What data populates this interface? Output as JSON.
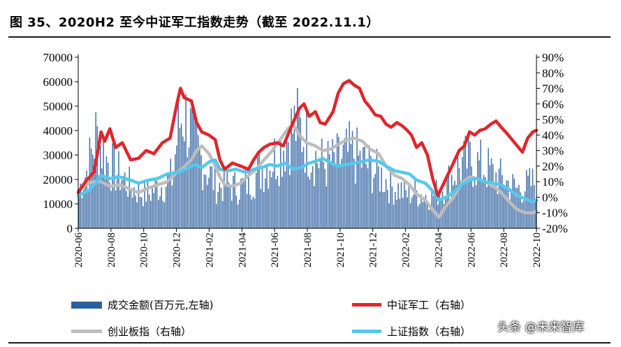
{
  "title": "图 35、2020H2 至今中证军工指数走势（截至 2022.11.1）",
  "watermark": "头条 @未来智库",
  "colors": {
    "volume": "#2c5f9e",
    "military": "#e0262b",
    "chinext": "#bdbdbd",
    "shanghai": "#55c8ee"
  },
  "chart_data": {
    "type": "bar+line",
    "left_axis": {
      "min": 0,
      "max": 70000,
      "ticks": [
        "0",
        "10000",
        "20000",
        "30000",
        "40000",
        "50000",
        "60000",
        "70000"
      ]
    },
    "right_axis": {
      "min": -20,
      "max": 90,
      "ticks": [
        "-20%",
        "-10%",
        "0%",
        "10%",
        "20%",
        "30%",
        "40%",
        "50%",
        "60%",
        "70%",
        "80%",
        "90%"
      ]
    },
    "x_ticks": [
      "2020-06",
      "2020-08",
      "2020-10",
      "2020-12",
      "2021-02",
      "2021-04",
      "2021-06",
      "2021-08",
      "2021-10",
      "2021-12",
      "2022-02",
      "2022-04",
      "2022-06",
      "2022-08",
      "2022-10"
    ],
    "x_range": [
      "2020-06-01",
      "2022-11-01"
    ],
    "series": [
      {
        "name": "成交金额(百万元,左轴)",
        "kind": "bar",
        "axis": "left",
        "points": [
          [
            "2020-06-01",
            15000
          ],
          [
            "2020-06-20",
            25000
          ],
          [
            "2020-07-05",
            38000
          ],
          [
            "2020-07-15",
            33000
          ],
          [
            "2020-07-25",
            28000
          ],
          [
            "2020-08-10",
            24000
          ],
          [
            "2020-08-25",
            21000
          ],
          [
            "2020-09-10",
            17000
          ],
          [
            "2020-09-25",
            15000
          ],
          [
            "2020-10-15",
            14000
          ],
          [
            "2020-10-30",
            17000
          ],
          [
            "2020-11-15",
            18000
          ],
          [
            "2020-11-30",
            21000
          ],
          [
            "2020-12-10",
            40000
          ],
          [
            "2020-12-20",
            48000
          ],
          [
            "2020-12-31",
            42000
          ],
          [
            "2021-01-10",
            35000
          ],
          [
            "2021-01-25",
            28000
          ],
          [
            "2021-02-10",
            22000
          ],
          [
            "2021-02-25",
            17000
          ],
          [
            "2021-03-10",
            18000
          ],
          [
            "2021-03-25",
            17000
          ],
          [
            "2021-04-10",
            17000
          ],
          [
            "2021-04-25",
            19000
          ],
          [
            "2021-05-10",
            22000
          ],
          [
            "2021-05-25",
            25000
          ],
          [
            "2021-06-10",
            28000
          ],
          [
            "2021-06-25",
            32000
          ],
          [
            "2021-07-10",
            38000
          ],
          [
            "2021-07-25",
            42000
          ],
          [
            "2021-08-05",
            40000
          ],
          [
            "2021-08-20",
            33000
          ],
          [
            "2021-09-05",
            28000
          ],
          [
            "2021-09-20",
            26000
          ],
          [
            "2021-10-10",
            27000
          ],
          [
            "2021-10-25",
            29000
          ],
          [
            "2021-11-10",
            31000
          ],
          [
            "2021-11-25",
            28000
          ],
          [
            "2021-12-10",
            26000
          ],
          [
            "2021-12-25",
            23000
          ],
          [
            "2022-01-10",
            21000
          ],
          [
            "2022-01-25",
            17000
          ],
          [
            "2022-02-10",
            16000
          ],
          [
            "2022-02-25",
            14000
          ],
          [
            "2022-03-10",
            15000
          ],
          [
            "2022-03-25",
            14000
          ],
          [
            "2022-04-10",
            13000
          ],
          [
            "2022-04-25",
            15000
          ],
          [
            "2022-05-10",
            18000
          ],
          [
            "2022-05-25",
            22000
          ],
          [
            "2022-06-10",
            26000
          ],
          [
            "2022-06-25",
            28000
          ],
          [
            "2022-07-10",
            26000
          ],
          [
            "2022-07-25",
            25000
          ],
          [
            "2022-08-10",
            22000
          ],
          [
            "2022-08-25",
            20000
          ],
          [
            "2022-09-10",
            18000
          ],
          [
            "2022-09-25",
            16000
          ],
          [
            "2022-10-10",
            17000
          ],
          [
            "2022-10-31",
            19000
          ]
        ]
      },
      {
        "name": "中证军工（右轴）",
        "kind": "line",
        "axis": "right",
        "points": [
          [
            "2020-06-01",
            3
          ],
          [
            "2020-06-15",
            10
          ],
          [
            "2020-07-01",
            16
          ],
          [
            "2020-07-08",
            28
          ],
          [
            "2020-07-15",
            42
          ],
          [
            "2020-07-22",
            36
          ],
          [
            "2020-08-01",
            44
          ],
          [
            "2020-08-12",
            32
          ],
          [
            "2020-08-25",
            35
          ],
          [
            "2020-09-10",
            24
          ],
          [
            "2020-09-25",
            25
          ],
          [
            "2020-10-10",
            30
          ],
          [
            "2020-10-25",
            28
          ],
          [
            "2020-11-10",
            35
          ],
          [
            "2020-11-25",
            38
          ],
          [
            "2020-12-08",
            60
          ],
          [
            "2020-12-15",
            70
          ],
          [
            "2020-12-22",
            64
          ],
          [
            "2021-01-05",
            62
          ],
          [
            "2021-01-15",
            48
          ],
          [
            "2021-01-25",
            42
          ],
          [
            "2021-02-08",
            40
          ],
          [
            "2021-02-20",
            37
          ],
          [
            "2021-03-01",
            24
          ],
          [
            "2021-03-10",
            18
          ],
          [
            "2021-03-25",
            22
          ],
          [
            "2021-04-10",
            20
          ],
          [
            "2021-04-25",
            18
          ],
          [
            "2021-05-05",
            24
          ],
          [
            "2021-05-15",
            29
          ],
          [
            "2021-05-25",
            32
          ],
          [
            "2021-06-05",
            34
          ],
          [
            "2021-06-20",
            35
          ],
          [
            "2021-07-01",
            33
          ],
          [
            "2021-07-10",
            40
          ],
          [
            "2021-07-20",
            48
          ],
          [
            "2021-08-01",
            57
          ],
          [
            "2021-08-10",
            60
          ],
          [
            "2021-08-20",
            52
          ],
          [
            "2021-09-01",
            55
          ],
          [
            "2021-09-10",
            48
          ],
          [
            "2021-09-20",
            47
          ],
          [
            "2021-10-05",
            55
          ],
          [
            "2021-10-15",
            67
          ],
          [
            "2021-10-25",
            73
          ],
          [
            "2021-11-05",
            75
          ],
          [
            "2021-11-15",
            72
          ],
          [
            "2021-11-25",
            70
          ],
          [
            "2021-12-05",
            62
          ],
          [
            "2021-12-15",
            58
          ],
          [
            "2021-12-25",
            53
          ],
          [
            "2022-01-05",
            52
          ],
          [
            "2022-01-15",
            47
          ],
          [
            "2022-01-25",
            45
          ],
          [
            "2022-02-05",
            48
          ],
          [
            "2022-02-15",
            46
          ],
          [
            "2022-02-25",
            43
          ],
          [
            "2022-03-05",
            40
          ],
          [
            "2022-03-15",
            32
          ],
          [
            "2022-03-25",
            35
          ],
          [
            "2022-04-05",
            27
          ],
          [
            "2022-04-15",
            12
          ],
          [
            "2022-04-25",
            1
          ],
          [
            "2022-05-05",
            8
          ],
          [
            "2022-05-15",
            15
          ],
          [
            "2022-05-25",
            22
          ],
          [
            "2022-06-05",
            30
          ],
          [
            "2022-06-15",
            33
          ],
          [
            "2022-06-25",
            42
          ],
          [
            "2022-07-05",
            40
          ],
          [
            "2022-07-15",
            43
          ],
          [
            "2022-07-25",
            44
          ],
          [
            "2022-08-05",
            47
          ],
          [
            "2022-08-15",
            49
          ],
          [
            "2022-08-25",
            45
          ],
          [
            "2022-09-05",
            41
          ],
          [
            "2022-09-20",
            35
          ],
          [
            "2022-10-05",
            29
          ],
          [
            "2022-10-15",
            38
          ],
          [
            "2022-10-25",
            42
          ],
          [
            "2022-11-01",
            43
          ]
        ]
      },
      {
        "name": "创业板指（右轴）",
        "kind": "line",
        "axis": "right",
        "points": [
          [
            "2020-06-01",
            4
          ],
          [
            "2020-06-15",
            8
          ],
          [
            "2020-07-01",
            10
          ],
          [
            "2020-07-15",
            10
          ],
          [
            "2020-08-01",
            7
          ],
          [
            "2020-08-20",
            8
          ],
          [
            "2020-09-10",
            5
          ],
          [
            "2020-09-25",
            3
          ],
          [
            "2020-10-15",
            6
          ],
          [
            "2020-11-01",
            8
          ],
          [
            "2020-11-20",
            10
          ],
          [
            "2020-12-05",
            15
          ],
          [
            "2020-12-20",
            19
          ],
          [
            "2021-01-05",
            24
          ],
          [
            "2021-01-15",
            30
          ],
          [
            "2021-01-25",
            33
          ],
          [
            "2021-02-08",
            28
          ],
          [
            "2021-02-20",
            20
          ],
          [
            "2021-03-01",
            13
          ],
          [
            "2021-03-10",
            8
          ],
          [
            "2021-03-25",
            7
          ],
          [
            "2021-04-10",
            9
          ],
          [
            "2021-04-25",
            14
          ],
          [
            "2021-05-10",
            18
          ],
          [
            "2021-05-25",
            24
          ],
          [
            "2021-06-10",
            30
          ],
          [
            "2021-06-25",
            37
          ],
          [
            "2021-07-10",
            44
          ],
          [
            "2021-07-20",
            47
          ],
          [
            "2021-08-01",
            40
          ],
          [
            "2021-08-15",
            35
          ],
          [
            "2021-09-01",
            33
          ],
          [
            "2021-09-15",
            30
          ],
          [
            "2021-10-01",
            31
          ],
          [
            "2021-10-15",
            34
          ],
          [
            "2021-11-01",
            37
          ],
          [
            "2021-11-15",
            38
          ],
          [
            "2021-12-01",
            36
          ],
          [
            "2021-12-15",
            31
          ],
          [
            "2022-01-01",
            28
          ],
          [
            "2022-01-15",
            20
          ],
          [
            "2022-02-01",
            14
          ],
          [
            "2022-02-15",
            12
          ],
          [
            "2022-03-01",
            8
          ],
          [
            "2022-03-15",
            2
          ],
          [
            "2022-04-01",
            -2
          ],
          [
            "2022-04-15",
            -8
          ],
          [
            "2022-04-27",
            -13
          ],
          [
            "2022-05-10",
            -6
          ],
          [
            "2022-05-25",
            0
          ],
          [
            "2022-06-10",
            9
          ],
          [
            "2022-06-25",
            13
          ],
          [
            "2022-07-10",
            12
          ],
          [
            "2022-07-25",
            10
          ],
          [
            "2022-08-10",
            7
          ],
          [
            "2022-08-25",
            3
          ],
          [
            "2022-09-10",
            -3
          ],
          [
            "2022-09-25",
            -8
          ],
          [
            "2022-10-10",
            -10
          ],
          [
            "2022-10-25",
            -10
          ],
          [
            "2022-11-01",
            -9
          ]
        ]
      },
      {
        "name": "上证指数（右轴）",
        "kind": "line",
        "axis": "right",
        "points": [
          [
            "2020-06-01",
            1
          ],
          [
            "2020-06-20",
            4
          ],
          [
            "2020-07-05",
            9
          ],
          [
            "2020-07-15",
            14
          ],
          [
            "2020-08-01",
            12
          ],
          [
            "2020-08-20",
            13
          ],
          [
            "2020-09-10",
            11
          ],
          [
            "2020-09-25",
            9
          ],
          [
            "2020-10-15",
            11
          ],
          [
            "2020-11-01",
            12
          ],
          [
            "2020-11-20",
            15
          ],
          [
            "2020-12-10",
            16
          ],
          [
            "2020-12-25",
            18
          ],
          [
            "2021-01-10",
            21
          ],
          [
            "2021-01-25",
            19
          ],
          [
            "2021-02-10",
            23
          ],
          [
            "2021-02-20",
            24
          ],
          [
            "2021-03-01",
            18
          ],
          [
            "2021-03-15",
            17
          ],
          [
            "2021-04-01",
            18
          ],
          [
            "2021-04-20",
            16
          ],
          [
            "2021-05-05",
            18
          ],
          [
            "2021-05-20",
            19
          ],
          [
            "2021-06-05",
            21
          ],
          [
            "2021-06-20",
            20
          ],
          [
            "2021-07-05",
            22
          ],
          [
            "2021-07-20",
            18
          ],
          [
            "2021-08-05",
            19
          ],
          [
            "2021-08-20",
            22
          ],
          [
            "2021-09-01",
            23
          ],
          [
            "2021-09-15",
            25
          ],
          [
            "2021-10-01",
            22
          ],
          [
            "2021-10-15",
            20
          ],
          [
            "2021-11-01",
            21
          ],
          [
            "2021-11-15",
            22
          ],
          [
            "2021-12-01",
            23
          ],
          [
            "2021-12-15",
            24
          ],
          [
            "2022-01-01",
            23
          ],
          [
            "2022-01-15",
            20
          ],
          [
            "2022-02-01",
            17
          ],
          [
            "2022-02-15",
            16
          ],
          [
            "2022-03-01",
            15
          ],
          [
            "2022-03-15",
            11
          ],
          [
            "2022-04-01",
            9
          ],
          [
            "2022-04-15",
            4
          ],
          [
            "2022-04-27",
            -2
          ],
          [
            "2022-05-10",
            0
          ],
          [
            "2022-05-25",
            3
          ],
          [
            "2022-06-10",
            8
          ],
          [
            "2022-06-25",
            11
          ],
          [
            "2022-07-10",
            12
          ],
          [
            "2022-07-25",
            10
          ],
          [
            "2022-08-10",
            9
          ],
          [
            "2022-08-25",
            8
          ],
          [
            "2022-09-10",
            5
          ],
          [
            "2022-09-25",
            1
          ],
          [
            "2022-10-10",
            -1
          ],
          [
            "2022-10-25",
            -3
          ],
          [
            "2022-11-01",
            -2
          ]
        ]
      }
    ]
  }
}
